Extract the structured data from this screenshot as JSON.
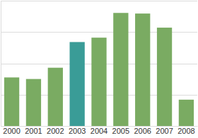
{
  "chart_data": {
    "type": "bar",
    "categories": [
      "2000",
      "2001",
      "2002",
      "2003",
      "2004",
      "2005",
      "2006",
      "2007",
      "2008"
    ],
    "values": [
      1.55,
      1.5,
      1.86,
      2.68,
      2.82,
      3.61,
      3.59,
      3.14,
      0.84
    ],
    "colors": [
      "#7aab62",
      "#7aab62",
      "#7aab62",
      "#3a9c97",
      "#7aab62",
      "#7aab62",
      "#7aab62",
      "#7aab62",
      "#7aab62"
    ],
    "ylim": [
      0,
      4
    ],
    "yticks": [
      0,
      1,
      2,
      3,
      4
    ],
    "grid": true,
    "tick_labels": "x"
  }
}
